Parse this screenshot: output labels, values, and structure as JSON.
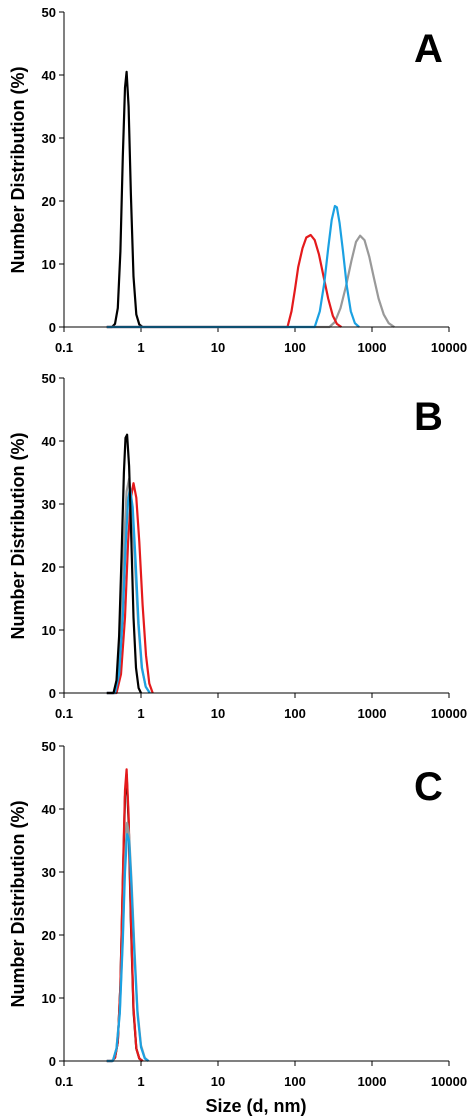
{
  "figure": {
    "ylabel": "Number Distribution (%)",
    "xlabel": "Size (d, nm)"
  },
  "chart_data": [
    {
      "type": "line",
      "panel_label": "A",
      "x_scale": "log",
      "xlim": [
        0.1,
        10000
      ],
      "ylim": [
        0,
        50
      ],
      "x_ticks": [
        "0.1",
        "1",
        "10",
        "100",
        "1000",
        "10000"
      ],
      "y_ticks": [
        "0",
        "10",
        "20",
        "30",
        "40",
        "50"
      ],
      "ylabel": "Number Distribution (%)",
      "xlabel": "",
      "series": [
        {
          "color": "#000000",
          "x": [
            0.42,
            0.46,
            0.5,
            0.54,
            0.58,
            0.62,
            0.65,
            0.69,
            0.74,
            0.8,
            0.87,
            0.95,
            1.05
          ],
          "y": [
            0,
            0.5,
            3,
            12,
            27,
            38,
            40.5,
            35,
            21,
            8,
            2,
            0.4,
            0
          ]
        },
        {
          "color": "#999999",
          "x": [
            280,
            330,
            390,
            460,
            540,
            620,
            700,
            800,
            920,
            1060,
            1220,
            1420,
            1650,
            1950
          ],
          "y": [
            0,
            0.8,
            3,
            6.5,
            10.5,
            13.5,
            14.5,
            13.8,
            11.2,
            7.8,
            4.5,
            2,
            0.6,
            0
          ]
        },
        {
          "color": "#e41a1c",
          "x": [
            80,
            90,
            100,
            110,
            125,
            140,
            160,
            180,
            205,
            235,
            270,
            310,
            350,
            400
          ],
          "y": [
            0,
            2.5,
            6,
            9.5,
            12.5,
            14.2,
            14.6,
            13.8,
            11.5,
            8,
            4.5,
            1.8,
            0.5,
            0
          ]
        },
        {
          "color": "#1ba1e2",
          "x": [
            180,
            210,
            240,
            270,
            300,
            330,
            350,
            380,
            420,
            470,
            530,
            600,
            680
          ],
          "y": [
            0,
            2.5,
            7,
            12.5,
            17,
            19.2,
            19,
            16.5,
            12,
            6.5,
            2.5,
            0.6,
            0
          ]
        }
      ]
    },
    {
      "type": "line",
      "panel_label": "B",
      "x_scale": "log",
      "xlim": [
        0.1,
        10000
      ],
      "ylim": [
        0,
        50
      ],
      "x_ticks": [
        "0.1",
        "1",
        "10",
        "100",
        "1000",
        "10000"
      ],
      "y_ticks": [
        "0",
        "10",
        "20",
        "30",
        "40",
        "50"
      ],
      "ylabel": "Number Distribution (%)",
      "xlabel": "",
      "series": [
        {
          "color": "#e41a1c",
          "x": [
            0.48,
            0.55,
            0.62,
            0.68,
            0.74,
            0.8,
            0.87,
            0.95,
            1.05,
            1.16,
            1.28,
            1.42
          ],
          "y": [
            0,
            3,
            12,
            24,
            31,
            33.3,
            31,
            24,
            14,
            6,
            1.5,
            0
          ]
        },
        {
          "color": "#999999",
          "x": [
            0.45,
            0.5,
            0.55,
            0.6,
            0.65,
            0.7,
            0.76,
            0.83,
            0.92,
            1.02,
            1.15,
            1.3
          ],
          "y": [
            0,
            3,
            11,
            23,
            32,
            34,
            30,
            21,
            11,
            4,
            1,
            0
          ]
        },
        {
          "color": "#1ba1e2",
          "x": [
            0.46,
            0.52,
            0.58,
            0.63,
            0.68,
            0.72,
            0.78,
            0.85,
            0.93,
            1.03,
            1.15,
            1.3
          ],
          "y": [
            0,
            3,
            12,
            23,
            30.5,
            32.5,
            29.5,
            21,
            11,
            4,
            1,
            0
          ]
        },
        {
          "color": "#000000",
          "x": [
            0.44,
            0.48,
            0.52,
            0.56,
            0.6,
            0.63,
            0.66,
            0.7,
            0.75,
            0.8,
            0.86,
            0.93,
            1.0
          ],
          "y": [
            0,
            2,
            9,
            22,
            35,
            40.5,
            41,
            36,
            24,
            12,
            4,
            0.8,
            0
          ]
        }
      ]
    },
    {
      "type": "line",
      "panel_label": "C",
      "x_scale": "log",
      "xlim": [
        0.1,
        10000
      ],
      "ylim": [
        0,
        50
      ],
      "x_ticks": [
        "0.1",
        "1",
        "10",
        "100",
        "1000",
        "10000"
      ],
      "y_ticks": [
        "0",
        "10",
        "20",
        "30",
        "40",
        "50"
      ],
      "ylabel": "Number Distribution (%)",
      "xlabel": "Size (d, nm)",
      "series": [
        {
          "color": "#000000",
          "x": [
            0.42,
            0.46,
            0.5,
            0.54,
            0.58,
            0.62,
            0.65,
            0.69,
            0.74,
            0.8,
            0.87,
            0.95,
            1.05
          ],
          "y": [
            0,
            0.5,
            3,
            12,
            28,
            42,
            45.5,
            38,
            22,
            8,
            2,
            0.4,
            0
          ]
        },
        {
          "color": "#e41a1c",
          "x": [
            0.42,
            0.46,
            0.5,
            0.54,
            0.58,
            0.62,
            0.65,
            0.69,
            0.74,
            0.8,
            0.87,
            0.95,
            1.05
          ],
          "y": [
            0,
            0.5,
            3,
            12,
            29,
            43,
            46.3,
            39,
            23,
            8.5,
            2,
            0.4,
            0
          ]
        },
        {
          "color": "#999999",
          "x": [
            0.43,
            0.48,
            0.53,
            0.58,
            0.62,
            0.66,
            0.7,
            0.75,
            0.82,
            0.9,
            1.0,
            1.12,
            1.25
          ],
          "y": [
            0,
            2,
            8,
            20,
            32,
            37.8,
            36,
            29,
            18,
            8,
            2.5,
            0.5,
            0
          ]
        },
        {
          "color": "#1ba1e2",
          "x": [
            0.43,
            0.48,
            0.53,
            0.58,
            0.62,
            0.66,
            0.7,
            0.75,
            0.82,
            0.9,
            1.0,
            1.12,
            1.25
          ],
          "y": [
            0,
            2,
            7.5,
            19,
            30,
            36,
            35,
            28,
            17,
            7.5,
            2.2,
            0.4,
            0
          ]
        }
      ]
    }
  ]
}
